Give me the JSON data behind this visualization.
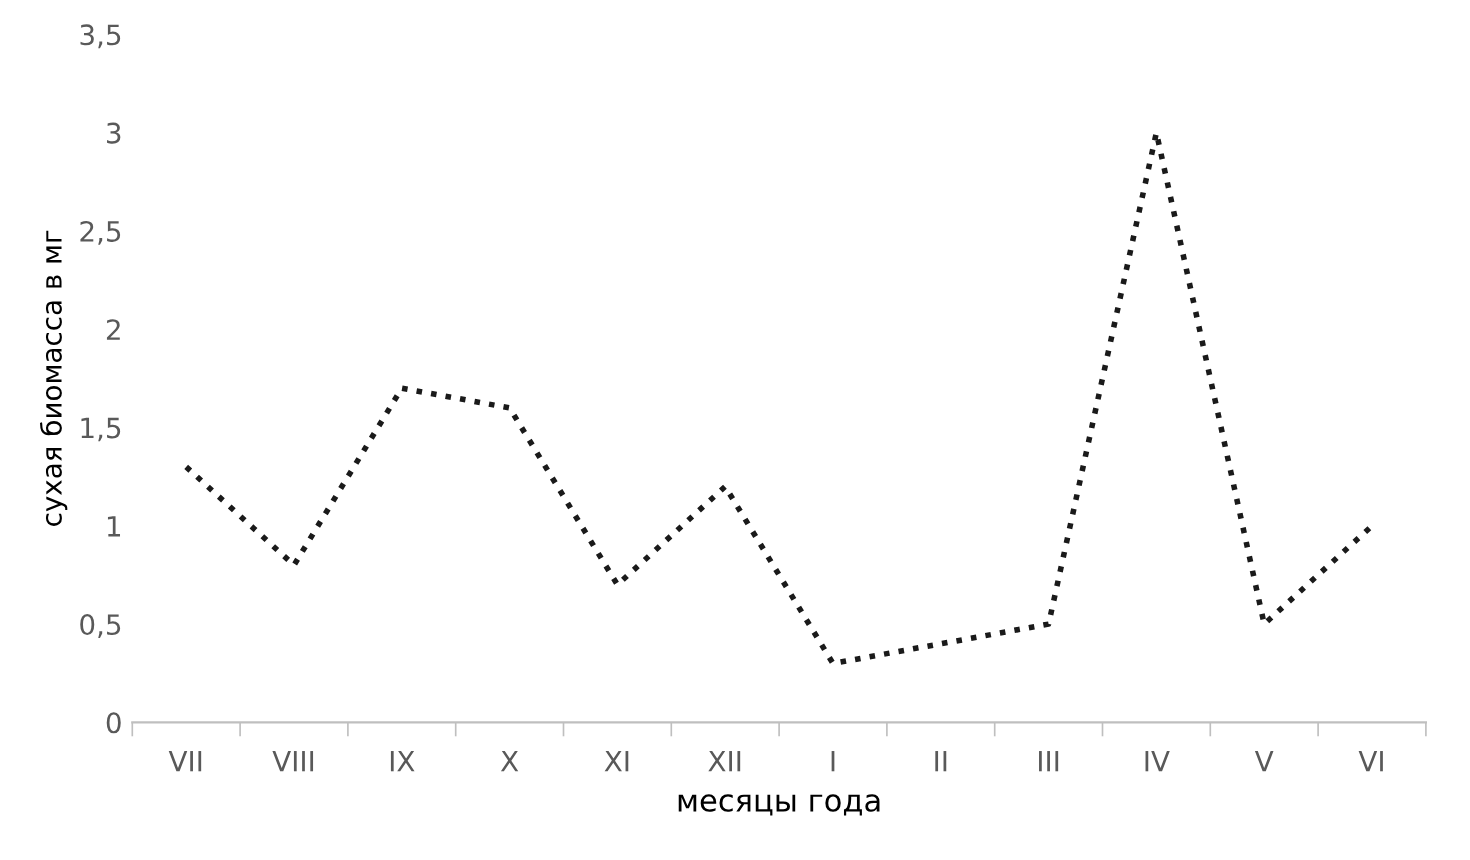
{
  "chart_data": {
    "type": "line",
    "xlabel": "месяцы года",
    "ylabel": "сухая биомасса в мг",
    "categories": [
      "VII",
      "VIII",
      "IX",
      "X",
      "XI",
      "XII",
      "I",
      "II",
      "III",
      "IV",
      "V",
      "VI"
    ],
    "series": [
      {
        "color": "#1a1a1a",
        "values": [
          1.3,
          0.8,
          1.7,
          1.6,
          0.7,
          1.2,
          0.3,
          0.4,
          0.5,
          3.0,
          0.5,
          1.0
        ]
      }
    ],
    "ylim": [
      0,
      3.5
    ],
    "yticks": [
      0,
      {
        "value": 0.5,
        "label": "0,5"
      },
      1,
      {
        "value": 1.5,
        "label": "1,5"
      },
      2,
      {
        "value": 2.5,
        "label": "2,5"
      },
      3,
      {
        "value": 3.5,
        "label": "3,5"
      }
    ],
    "grid": false,
    "legend": false,
    "marker": "none",
    "line_style": "dotted"
  }
}
